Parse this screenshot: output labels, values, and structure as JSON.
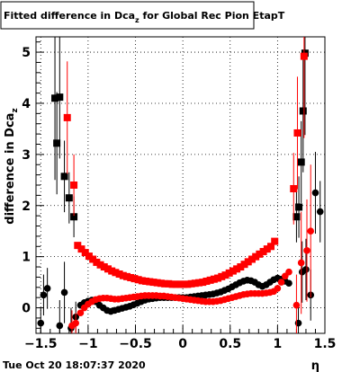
{
  "title_main": "Fitted difference in Dca",
  "title_sub": "z",
  "title_rest": " for Global Rec Pion EtapT",
  "ylabel_main": "difference in Dca",
  "ylabel_sub": "z",
  "xlabel": "η",
  "timestamp": "Tue Oct 20 18:07:37 2020",
  "colors": {
    "black": "#000000",
    "red": "#ff0000",
    "grid": "#000000"
  },
  "chart_data": {
    "type": "scatter",
    "title": "Fitted difference in Dcaz for Global Rec Pion EtapT",
    "xlabel": "η",
    "ylabel": "difference in Dcaz",
    "xlim": [
      -1.55,
      1.5
    ],
    "ylim": [
      -0.5,
      5.3
    ],
    "grid": true,
    "xticks": [
      "−1.5",
      "−1",
      "−0.5",
      "0",
      "0.5",
      "1",
      "1.5"
    ],
    "yticks": [
      "0",
      "1",
      "2",
      "3",
      "4",
      "5"
    ],
    "series": [
      {
        "marker": "square",
        "color": "#000000",
        "points": [
          {
            "x": -1.35,
            "y": 4.1,
            "e": 1.6
          },
          {
            "x": -1.3,
            "y": 4.12,
            "e": 1.2
          },
          {
            "x": -1.33,
            "y": 3.22,
            "e": 1.0
          },
          {
            "x": -1.25,
            "y": 2.57,
            "e": 0.7
          },
          {
            "x": -1.2,
            "y": 2.15,
            "e": 0.5
          },
          {
            "x": -1.15,
            "y": 1.78,
            "e": 0.4
          },
          {
            "x": 1.2,
            "y": 1.78,
            "e": 0.5
          },
          {
            "x": 1.225,
            "y": 1.97,
            "e": 0.6
          },
          {
            "x": 1.25,
            "y": 2.85,
            "e": 0.8
          },
          {
            "x": 1.27,
            "y": 3.85,
            "e": 1.2
          },
          {
            "x": 1.29,
            "y": 4.98,
            "e": 1.6
          }
        ]
      },
      {
        "marker": "circle",
        "color": "#000000",
        "points": [
          {
            "x": -1.5,
            "y": -0.3,
            "e": 0.3
          },
          {
            "x": -1.47,
            "y": 0.25,
            "e": 0.4
          },
          {
            "x": -1.43,
            "y": 0.38,
            "e": 0.4
          },
          {
            "x": -1.3,
            "y": -0.35,
            "e": 0.5
          },
          {
            "x": -1.25,
            "y": 0.3,
            "e": 0.6
          },
          {
            "x": -1.18,
            "y": -0.4,
            "e": 0.4
          },
          {
            "x": -1.13,
            "y": -0.18,
            "e": 0.3
          },
          {
            "x": -1.08,
            "y": 0.05
          },
          {
            "x": -1.04,
            "y": 0.1
          },
          {
            "x": -1.0,
            "y": 0.13
          },
          {
            "x": -0.96,
            "y": 0.15
          },
          {
            "x": -0.92,
            "y": 0.12
          },
          {
            "x": -0.88,
            "y": 0.05
          },
          {
            "x": -0.84,
            "y": 0.0
          },
          {
            "x": -0.8,
            "y": -0.05
          },
          {
            "x": -0.76,
            "y": -0.07
          },
          {
            "x": -0.72,
            "y": -0.05
          },
          {
            "x": -0.68,
            "y": -0.03
          },
          {
            "x": -0.64,
            "y": -0.01
          },
          {
            "x": -0.6,
            "y": 0.01
          },
          {
            "x": -0.56,
            "y": 0.03
          },
          {
            "x": -0.52,
            "y": 0.06
          },
          {
            "x": -0.48,
            "y": 0.09
          },
          {
            "x": -0.44,
            "y": 0.12
          },
          {
            "x": -0.4,
            "y": 0.15
          },
          {
            "x": -0.36,
            "y": 0.17
          },
          {
            "x": -0.32,
            "y": 0.18
          },
          {
            "x": -0.28,
            "y": 0.19
          },
          {
            "x": -0.24,
            "y": 0.2
          },
          {
            "x": -0.2,
            "y": 0.2
          },
          {
            "x": -0.16,
            "y": 0.2
          },
          {
            "x": -0.12,
            "y": 0.2
          },
          {
            "x": -0.08,
            "y": 0.2
          },
          {
            "x": -0.04,
            "y": 0.2
          },
          {
            "x": 0.0,
            "y": 0.2
          },
          {
            "x": 0.04,
            "y": 0.2
          },
          {
            "x": 0.08,
            "y": 0.21
          },
          {
            "x": 0.12,
            "y": 0.22
          },
          {
            "x": 0.16,
            "y": 0.23
          },
          {
            "x": 0.2,
            "y": 0.24
          },
          {
            "x": 0.24,
            "y": 0.25
          },
          {
            "x": 0.28,
            "y": 0.26
          },
          {
            "x": 0.32,
            "y": 0.27
          },
          {
            "x": 0.36,
            "y": 0.29
          },
          {
            "x": 0.4,
            "y": 0.31
          },
          {
            "x": 0.44,
            "y": 0.34
          },
          {
            "x": 0.48,
            "y": 0.37
          },
          {
            "x": 0.52,
            "y": 0.41
          },
          {
            "x": 0.56,
            "y": 0.45
          },
          {
            "x": 0.6,
            "y": 0.49
          },
          {
            "x": 0.64,
            "y": 0.52
          },
          {
            "x": 0.68,
            "y": 0.54
          },
          {
            "x": 0.72,
            "y": 0.53
          },
          {
            "x": 0.76,
            "y": 0.5
          },
          {
            "x": 0.8,
            "y": 0.45
          },
          {
            "x": 0.84,
            "y": 0.42
          },
          {
            "x": 0.88,
            "y": 0.45
          },
          {
            "x": 0.92,
            "y": 0.5
          },
          {
            "x": 0.96,
            "y": 0.55
          },
          {
            "x": 1.0,
            "y": 0.58
          },
          {
            "x": 1.04,
            "y": 0.56
          },
          {
            "x": 1.08,
            "y": 0.52
          },
          {
            "x": 1.12,
            "y": 0.48
          },
          {
            "x": 1.22,
            "y": -0.3,
            "e": 0.4
          },
          {
            "x": 1.26,
            "y": 0.7,
            "e": 0.6
          },
          {
            "x": 1.3,
            "y": 0.75,
            "e": 0.6
          },
          {
            "x": 1.35,
            "y": 0.25,
            "e": 0.5
          },
          {
            "x": 1.4,
            "y": 2.25,
            "e": 0.8
          },
          {
            "x": 1.45,
            "y": 1.88,
            "e": 0.6
          }
        ]
      },
      {
        "marker": "square",
        "color": "#ff0000",
        "points": [
          {
            "x": -1.22,
            "y": 3.72,
            "e": 1.1
          },
          {
            "x": -1.15,
            "y": 2.4,
            "e": 0.6
          },
          {
            "x": -1.11,
            "y": 1.22
          },
          {
            "x": -1.07,
            "y": 1.15
          },
          {
            "x": -1.03,
            "y": 1.08
          },
          {
            "x": -0.99,
            "y": 1.01
          },
          {
            "x": -0.95,
            "y": 0.95
          },
          {
            "x": -0.91,
            "y": 0.89
          },
          {
            "x": -0.87,
            "y": 0.84
          },
          {
            "x": -0.83,
            "y": 0.8
          },
          {
            "x": -0.79,
            "y": 0.76
          },
          {
            "x": -0.75,
            "y": 0.72
          },
          {
            "x": -0.71,
            "y": 0.69
          },
          {
            "x": -0.67,
            "y": 0.66
          },
          {
            "x": -0.63,
            "y": 0.63
          },
          {
            "x": -0.59,
            "y": 0.61
          },
          {
            "x": -0.55,
            "y": 0.59
          },
          {
            "x": -0.51,
            "y": 0.57
          },
          {
            "x": -0.47,
            "y": 0.55
          },
          {
            "x": -0.43,
            "y": 0.53
          },
          {
            "x": -0.39,
            "y": 0.52
          },
          {
            "x": -0.35,
            "y": 0.51
          },
          {
            "x": -0.31,
            "y": 0.5
          },
          {
            "x": -0.27,
            "y": 0.49
          },
          {
            "x": -0.23,
            "y": 0.48
          },
          {
            "x": -0.19,
            "y": 0.47
          },
          {
            "x": -0.15,
            "y": 0.47
          },
          {
            "x": -0.11,
            "y": 0.46
          },
          {
            "x": -0.07,
            "y": 0.46
          },
          {
            "x": -0.03,
            "y": 0.46
          },
          {
            "x": 0.01,
            "y": 0.46
          },
          {
            "x": 0.05,
            "y": 0.46
          },
          {
            "x": 0.09,
            "y": 0.47
          },
          {
            "x": 0.13,
            "y": 0.48
          },
          {
            "x": 0.17,
            "y": 0.49
          },
          {
            "x": 0.21,
            "y": 0.5
          },
          {
            "x": 0.25,
            "y": 0.52
          },
          {
            "x": 0.29,
            "y": 0.54
          },
          {
            "x": 0.33,
            "y": 0.56
          },
          {
            "x": 0.37,
            "y": 0.58
          },
          {
            "x": 0.41,
            "y": 0.61
          },
          {
            "x": 0.45,
            "y": 0.64
          },
          {
            "x": 0.49,
            "y": 0.68
          },
          {
            "x": 0.53,
            "y": 0.72
          },
          {
            "x": 0.57,
            "y": 0.76
          },
          {
            "x": 0.61,
            "y": 0.8
          },
          {
            "x": 0.65,
            "y": 0.85
          },
          {
            "x": 0.69,
            "y": 0.9
          },
          {
            "x": 0.73,
            "y": 0.95
          },
          {
            "x": 0.77,
            "y": 1.0
          },
          {
            "x": 0.81,
            "y": 1.05
          },
          {
            "x": 0.85,
            "y": 1.1
          },
          {
            "x": 0.89,
            "y": 1.15
          },
          {
            "x": 0.93,
            "y": 1.2
          },
          {
            "x": 0.97,
            "y": 1.3
          },
          {
            "x": 1.17,
            "y": 2.33,
            "e": 0.7
          },
          {
            "x": 1.21,
            "y": 3.42,
            "e": 1.1
          },
          {
            "x": 1.28,
            "y": 4.92,
            "e": 1.6
          }
        ]
      },
      {
        "marker": "circle",
        "color": "#ff0000",
        "points": [
          {
            "x": -1.17,
            "y": -0.35,
            "e": 0.3
          },
          {
            "x": -1.13,
            "y": -0.3,
            "e": 0.2
          },
          {
            "x": -1.08,
            "y": -0.1
          },
          {
            "x": -1.04,
            "y": 0.0
          },
          {
            "x": -1.0,
            "y": 0.07
          },
          {
            "x": -0.96,
            "y": 0.12
          },
          {
            "x": -0.92,
            "y": 0.16
          },
          {
            "x": -0.88,
            "y": 0.18
          },
          {
            "x": -0.84,
            "y": 0.19
          },
          {
            "x": -0.8,
            "y": 0.19
          },
          {
            "x": -0.76,
            "y": 0.18
          },
          {
            "x": -0.72,
            "y": 0.17
          },
          {
            "x": -0.68,
            "y": 0.17
          },
          {
            "x": -0.64,
            "y": 0.18
          },
          {
            "x": -0.6,
            "y": 0.19
          },
          {
            "x": -0.56,
            "y": 0.2
          },
          {
            "x": -0.52,
            "y": 0.21
          },
          {
            "x": -0.48,
            "y": 0.22
          },
          {
            "x": -0.44,
            "y": 0.23
          },
          {
            "x": -0.4,
            "y": 0.24
          },
          {
            "x": -0.36,
            "y": 0.24
          },
          {
            "x": -0.32,
            "y": 0.24
          },
          {
            "x": -0.28,
            "y": 0.24
          },
          {
            "x": -0.24,
            "y": 0.23
          },
          {
            "x": -0.2,
            "y": 0.23
          },
          {
            "x": -0.16,
            "y": 0.22
          },
          {
            "x": -0.12,
            "y": 0.21
          },
          {
            "x": -0.08,
            "y": 0.2
          },
          {
            "x": -0.04,
            "y": 0.19
          },
          {
            "x": 0.0,
            "y": 0.18
          },
          {
            "x": 0.04,
            "y": 0.17
          },
          {
            "x": 0.08,
            "y": 0.16
          },
          {
            "x": 0.12,
            "y": 0.15
          },
          {
            "x": 0.16,
            "y": 0.14
          },
          {
            "x": 0.2,
            "y": 0.13
          },
          {
            "x": 0.24,
            "y": 0.12
          },
          {
            "x": 0.28,
            "y": 0.12
          },
          {
            "x": 0.32,
            "y": 0.12
          },
          {
            "x": 0.36,
            "y": 0.13
          },
          {
            "x": 0.4,
            "y": 0.14
          },
          {
            "x": 0.44,
            "y": 0.16
          },
          {
            "x": 0.48,
            "y": 0.18
          },
          {
            "x": 0.52,
            "y": 0.2
          },
          {
            "x": 0.56,
            "y": 0.22
          },
          {
            "x": 0.6,
            "y": 0.24
          },
          {
            "x": 0.64,
            "y": 0.26
          },
          {
            "x": 0.68,
            "y": 0.27
          },
          {
            "x": 0.72,
            "y": 0.28
          },
          {
            "x": 0.76,
            "y": 0.28
          },
          {
            "x": 0.8,
            "y": 0.28
          },
          {
            "x": 0.84,
            "y": 0.28
          },
          {
            "x": 0.88,
            "y": 0.29
          },
          {
            "x": 0.92,
            "y": 0.3
          },
          {
            "x": 0.96,
            "y": 0.32
          },
          {
            "x": 1.0,
            "y": 0.38
          },
          {
            "x": 1.04,
            "y": 0.5
          },
          {
            "x": 1.08,
            "y": 0.62
          },
          {
            "x": 1.12,
            "y": 0.7
          },
          {
            "x": 1.2,
            "y": 0.05,
            "e": 0.6
          },
          {
            "x": 1.25,
            "y": 0.88,
            "e": 1.0
          },
          {
            "x": 1.31,
            "y": 1.12,
            "e": 1.0
          },
          {
            "x": 1.35,
            "y": 1.5,
            "e": 1.3
          }
        ]
      }
    ]
  }
}
